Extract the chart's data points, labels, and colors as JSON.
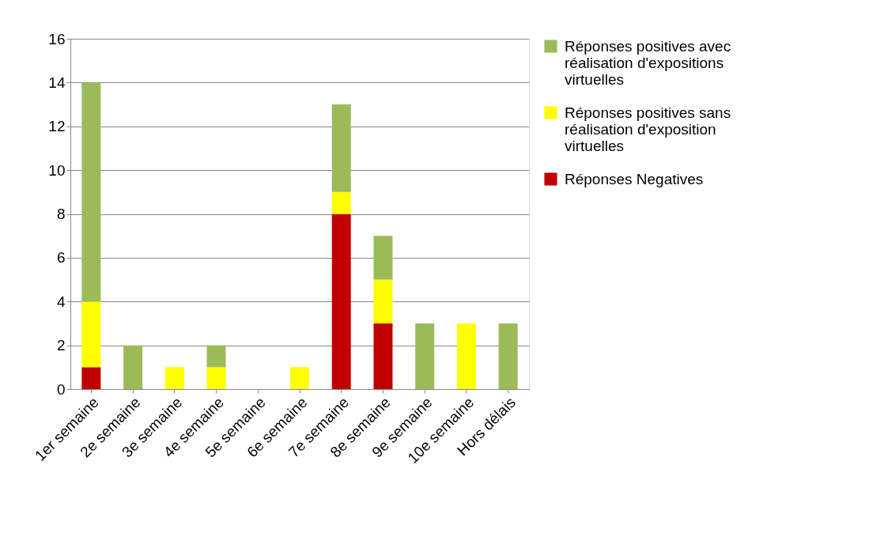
{
  "chart_data": {
    "type": "bar",
    "stacked": true,
    "categories": [
      "1er semaine",
      "2e semaine",
      "3e semaine",
      "4e semaine",
      "5e semaine",
      "6e semaine",
      "7e semaine",
      "8e semaine",
      "9e semaine",
      "10e semaine",
      "Hors délais"
    ],
    "series": [
      {
        "name": "Réponses Negatives",
        "color": "#c00000",
        "values": [
          1,
          0,
          0,
          0,
          0,
          0,
          8,
          3,
          0,
          0,
          0
        ]
      },
      {
        "name": "Réponses positives sans réalisation d'exposition virtuelles",
        "color": "#ffff00",
        "values": [
          3,
          0,
          1,
          1,
          0,
          1,
          1,
          2,
          0,
          3,
          0
        ]
      },
      {
        "name": "Réponses positives avec réalisation d'expositions virtuelles",
        "color": "#9bbb59",
        "values": [
          10,
          2,
          0,
          1,
          0,
          0,
          4,
          2,
          3,
          0,
          3
        ]
      }
    ],
    "ylim": [
      0,
      16
    ],
    "yticks": [
      0,
      2,
      4,
      6,
      8,
      10,
      12,
      14,
      16
    ],
    "grid": "y",
    "legend": "right"
  }
}
